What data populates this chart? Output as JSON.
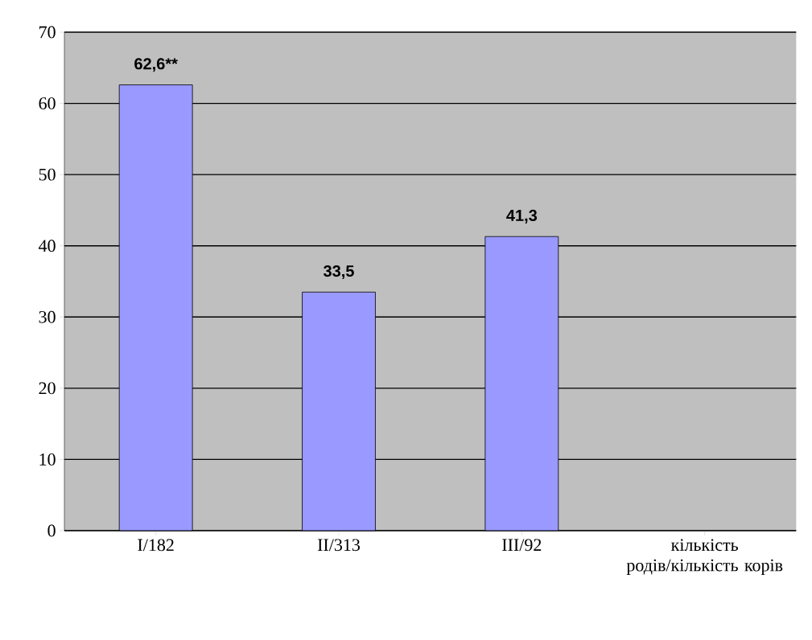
{
  "chart_data": {
    "type": "bar",
    "categories": [
      "I/182",
      "II/313",
      "III/92",
      "кількість родів/кількість корів"
    ],
    "values": [
      62.6,
      33.5,
      41.3,
      null
    ],
    "value_labels": [
      "62,6**",
      "33,5",
      "41,3",
      null
    ],
    "color": "#9999ff",
    "ylim": [
      0,
      70
    ],
    "yticks": [
      0,
      10,
      20,
      30,
      40,
      50,
      60,
      70
    ],
    "grid": "y"
  }
}
